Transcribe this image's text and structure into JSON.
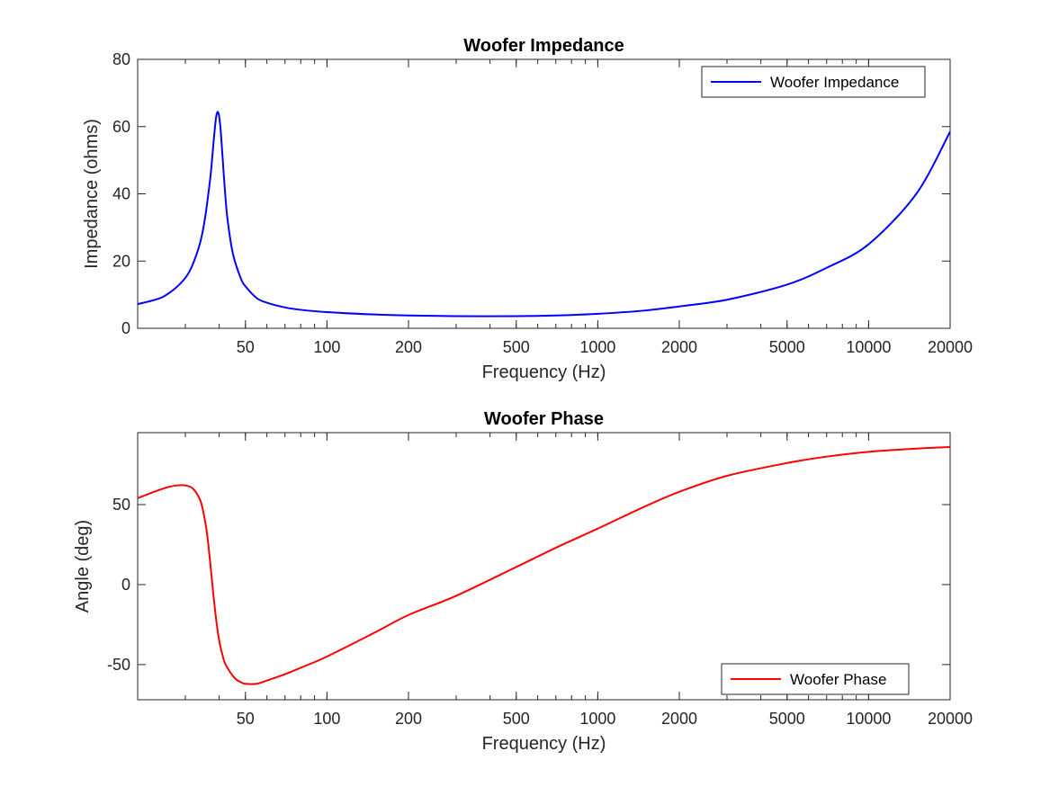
{
  "chart_data": [
    {
      "type": "line",
      "title": "Woofer Impedance",
      "xlabel": "Frequency (Hz)",
      "ylabel": "Impedance (ohms)",
      "xscale": "log",
      "xlim": [
        20,
        20000
      ],
      "ylim": [
        0,
        80
      ],
      "xticks": [
        50,
        100,
        200,
        500,
        1000,
        2000,
        5000,
        10000,
        20000
      ],
      "xtick_labels": [
        "50",
        "100",
        "200",
        "500",
        "1000",
        "2000",
        "5000",
        "10000",
        "20000"
      ],
      "yticks": [
        0,
        20,
        40,
        60,
        80
      ],
      "ytick_labels": [
        "0",
        "20",
        "40",
        "60",
        "80"
      ],
      "legend_position": "top-right",
      "series": [
        {
          "name": "Woofer Impedance",
          "color": "#0000ff",
          "x": [
            20,
            25,
            30,
            33,
            35,
            37,
            38,
            38.5,
            39,
            39.5,
            40,
            40.5,
            41,
            42,
            43,
            45,
            48,
            50,
            55,
            60,
            70,
            80,
            100,
            150,
            200,
            300,
            500,
            700,
            1000,
            1500,
            2000,
            3000,
            5000,
            7000,
            10000,
            15000,
            20000
          ],
          "y": [
            7.2,
            9.5,
            15,
            22,
            30,
            44,
            54,
            59,
            63,
            64.4,
            63,
            59,
            53,
            41,
            32,
            22,
            15,
            12.5,
            9,
            7.6,
            6.2,
            5.5,
            4.8,
            4.1,
            3.8,
            3.6,
            3.6,
            3.8,
            4.3,
            5.3,
            6.5,
            8.5,
            13,
            18,
            25,
            40,
            58.5
          ]
        }
      ]
    },
    {
      "type": "line",
      "title": "Woofer Phase",
      "xlabel": "Frequency (Hz)",
      "ylabel": "Angle (deg)",
      "xscale": "log",
      "xlim": [
        20,
        20000
      ],
      "ylim": [
        -72,
        95
      ],
      "xticks": [
        50,
        100,
        200,
        500,
        1000,
        2000,
        5000,
        10000,
        20000
      ],
      "xtick_labels": [
        "50",
        "100",
        "200",
        "500",
        "1000",
        "2000",
        "5000",
        "10000",
        "20000"
      ],
      "yticks": [
        -50,
        0,
        50
      ],
      "ytick_labels": [
        "-50",
        "0",
        "50"
      ],
      "legend_position": "bottom-right",
      "series": [
        {
          "name": "Woofer Phase",
          "color": "#ff0000",
          "x": [
            20,
            23,
            26,
            28,
            30,
            32,
            34,
            35,
            36,
            37,
            38,
            39,
            40,
            41,
            42,
            44,
            46,
            48,
            50,
            55,
            60,
            70,
            80,
            100,
            150,
            200,
            300,
            500,
            700,
            1000,
            1500,
            2000,
            3000,
            5000,
            7000,
            10000,
            15000,
            20000
          ],
          "y": [
            54,
            58,
            61,
            62,
            62,
            60,
            53,
            45,
            33,
            15,
            -5,
            -22,
            -35,
            -43,
            -49,
            -55,
            -59,
            -61,
            -62,
            -62,
            -60,
            -56,
            -52,
            -45,
            -30,
            -19,
            -7,
            11,
            23,
            35,
            49,
            58,
            68,
            76,
            80,
            83,
            85,
            86
          ]
        }
      ]
    }
  ]
}
